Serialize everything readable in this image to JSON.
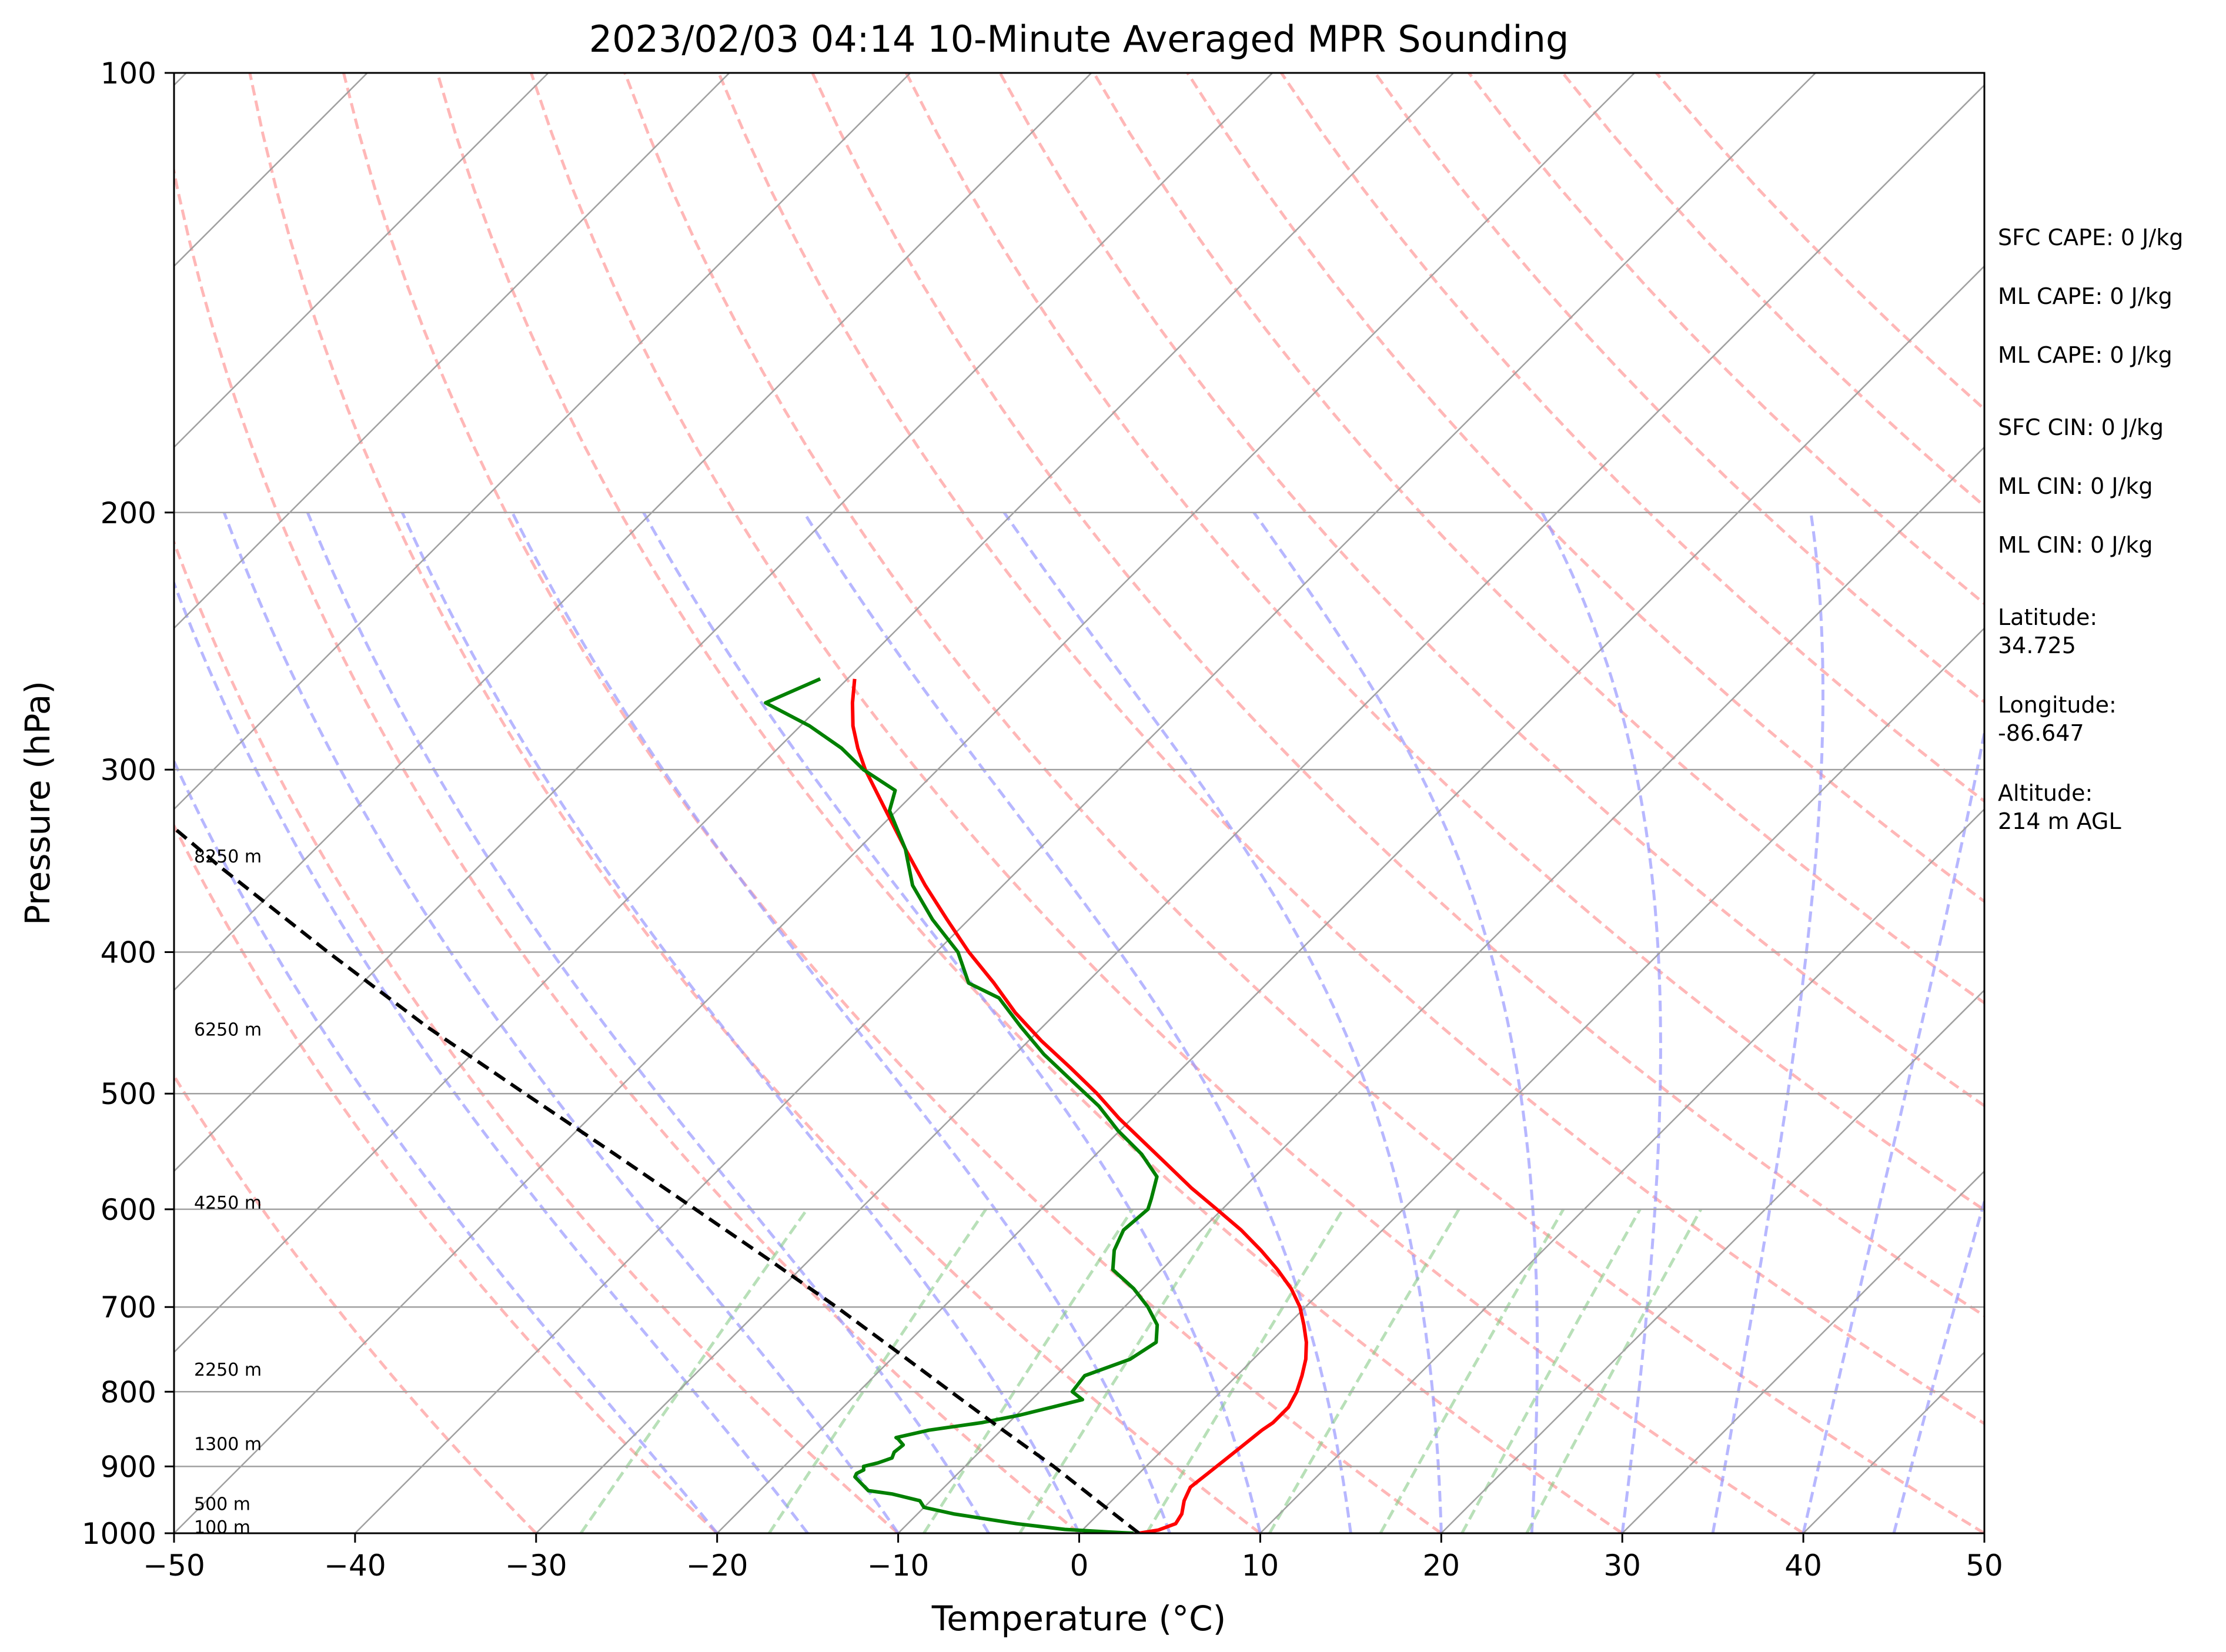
{
  "chart_data": {
    "type": "line",
    "title": "2023/02/03 04:14 10-Minute Averaged MPR Sounding",
    "xlabel": "Temperature (°C)",
    "ylabel": "Pressure (hPa)",
    "xlim": [
      -50,
      50
    ],
    "ylim": [
      1000,
      100
    ],
    "y_scale": "log",
    "skew": "45-degree skew-T",
    "grid": true,
    "x_ticks": [
      -50,
      -40,
      -30,
      -20,
      -10,
      0,
      10,
      20,
      30,
      40,
      50
    ],
    "x_tick_labels": [
      "−50",
      "−40",
      "−30",
      "−20",
      "−10",
      "0",
      "10",
      "20",
      "30",
      "40",
      "50"
    ],
    "y_ticks": [
      1000,
      900,
      800,
      700,
      600,
      500,
      400,
      300,
      200,
      100
    ],
    "y_tick_labels": [
      "1000",
      "900",
      "800",
      "700",
      "600",
      "500",
      "400",
      "300",
      "200",
      "100"
    ],
    "series": [
      {
        "color": "#ff0000",
        "pressure": [
          1000,
          995,
          985,
          970,
          950,
          930,
          910,
          890,
          870,
          850,
          840,
          820,
          800,
          780,
          760,
          740,
          720,
          700,
          680,
          660,
          640,
          620,
          600,
          580,
          560,
          540,
          520,
          500,
          480,
          460,
          440,
          420,
          400,
          380,
          360,
          340,
          320,
          300,
          290,
          280,
          270,
          260
        ],
        "temperature": [
          3.3,
          4.2,
          4.8,
          4.6,
          4.0,
          3.6,
          3.8,
          4.0,
          4.2,
          4.4,
          4.6,
          4.6,
          4.2,
          3.6,
          2.9,
          2.0,
          0.9,
          -0.3,
          -1.8,
          -3.6,
          -5.6,
          -7.8,
          -10.3,
          -12.9,
          -15.4,
          -18.0,
          -20.7,
          -23.3,
          -26.2,
          -29.3,
          -32.3,
          -35.1,
          -38.2,
          -41.2,
          -44.3,
          -47.4,
          -50.6,
          -54.0,
          -55.6,
          -57.1,
          -58.4,
          -59.6
        ]
      },
      {
        "color": "#008000",
        "pressure": [
          1000,
          998,
          994,
          985,
          970,
          960,
          950,
          940,
          935,
          915,
          910,
          905,
          900,
          895,
          888,
          880,
          870,
          862,
          860,
          850,
          840,
          830,
          820,
          810,
          800,
          790,
          780,
          760,
          740,
          720,
          700,
          680,
          660,
          640,
          620,
          600,
          590,
          570,
          550,
          530,
          510,
          490,
          470,
          450,
          430,
          420,
          400,
          380,
          360,
          340,
          320,
          310,
          300,
          290,
          280,
          270,
          260
        ],
        "dewpoint": [
          3.0,
          1.5,
          -1.0,
          -4.0,
          -8.0,
          -10.0,
          -10.6,
          -12.5,
          -14.0,
          -15.5,
          -15.6,
          -15.4,
          -15.6,
          -15.0,
          -14.5,
          -14.7,
          -14.6,
          -15.2,
          -15.4,
          -14.0,
          -11.5,
          -9.8,
          -8.5,
          -7.2,
          -8.2,
          -8.3,
          -8.4,
          -6.8,
          -6.3,
          -7.2,
          -8.7,
          -10.5,
          -12.7,
          -13.7,
          -14.3,
          -14.1,
          -14.5,
          -15.4,
          -17.5,
          -20.1,
          -22.5,
          -25.4,
          -28.4,
          -31.2,
          -34.0,
          -36.5,
          -38.8,
          -42.0,
          -45.0,
          -47.4,
          -50.4,
          -51.2,
          -54.1,
          -56.5,
          -59.5,
          -63.2,
          -61.5
        ]
      },
      {
        "color": "#000000",
        "style": "dashed",
        "pressure": [
          1000,
          950,
          900,
          850,
          800,
          750,
          700,
          650,
          600,
          550,
          500,
          450,
          400,
          350,
          300,
          270,
          260
        ],
        "temperature": [
          3.3,
          -0.8,
          -5.1,
          -9.9,
          -14.9,
          -20.2,
          -25.9,
          -32.2,
          -39.1,
          -46.6,
          -54.9,
          -64.0,
          -73.6,
          -84.2,
          -96.0,
          -103.5,
          -106.0
        ]
      }
    ],
    "height_labels": [
      {
        "text": "8250 m",
        "pressure": 344
      },
      {
        "text": "6250 m",
        "pressure": 452
      },
      {
        "text": "4250 m",
        "pressure": 594
      },
      {
        "text": "2250 m",
        "pressure": 773
      },
      {
        "text": "1300 m",
        "pressure": 869
      },
      {
        "text": "500 m",
        "pressure": 955
      },
      {
        "text": "100 m",
        "pressure": 991
      }
    ]
  },
  "side_info": [
    "SFC CAPE: 0 J/kg",
    "ML CAPE: 0 J/kg",
    "ML CAPE: 0 J/kg",
    "SFC CIN: 0 J/kg",
    "ML CIN: 0 J/kg",
    "ML CIN: 0 J/kg",
    "Latitude:",
    "34.725",
    "Longitude:",
    "-86.647",
    "Altitude:",
    "214 m AGL"
  ],
  "colors": {
    "temperature": "#ff0000",
    "dewpoint": "#008000",
    "parcel": "#000000",
    "dry_adiabats": "#ff9999",
    "moist_adiabats": "#9999ff",
    "mixing_ratio": "#88cc88",
    "grid": "#a0a0a0"
  }
}
